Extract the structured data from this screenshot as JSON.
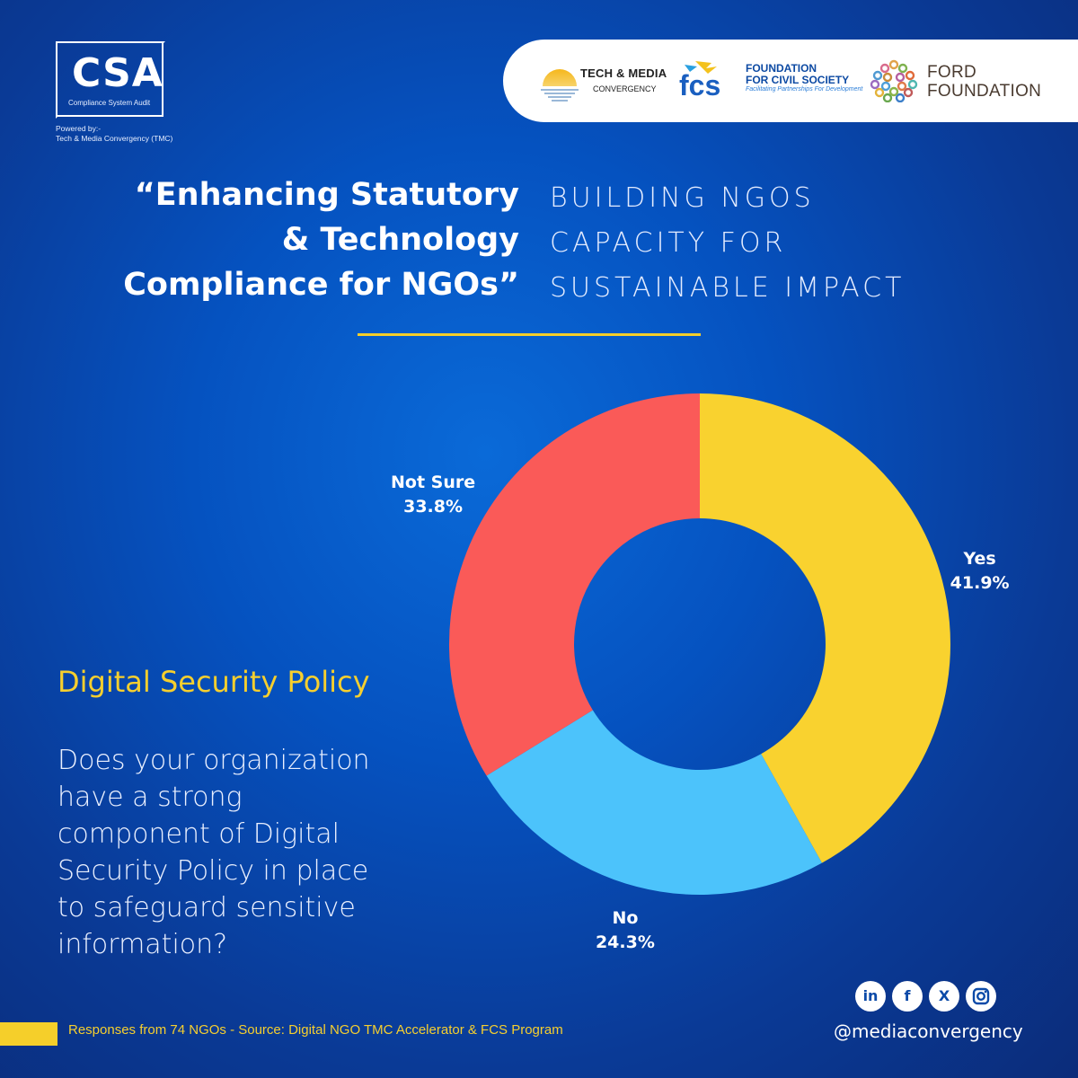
{
  "brand": {
    "logo_letters": "CSA",
    "logo_sub": "Compliance System Audit",
    "powered_1": "Powered by:-",
    "powered_2": "Tech & Media Convergency (TMC)"
  },
  "partners": {
    "tmc_1": "TECH & MEDIA",
    "tmc_2": "CONVERGENCY",
    "fcs_mark": "fcs",
    "fcs_1": "FOUNDATION",
    "fcs_2": "FOR CIVIL SOCIETY",
    "fcs_3": "Facilitating Partnerships For Development",
    "ford_1": "FORD",
    "ford_2": "FOUNDATION"
  },
  "headline": {
    "l1": "“Enhancing Statutory",
    "l2": "& Technology",
    "l3": "Compliance for NGOs”"
  },
  "subhead": {
    "l1": "BUILDING NGOS",
    "l2": "CAPACITY FOR",
    "l3": "SUSTAINABLE IMPACT"
  },
  "colors": {
    "yes": "#f9d22f",
    "no": "#4cc3fb",
    "not_sure": "#fa5a58",
    "accent": "#f5cf2a"
  },
  "chart_data": {
    "type": "pie",
    "donut": true,
    "categories": [
      "Yes",
      "No",
      "Not Sure"
    ],
    "values": [
      41.9,
      24.3,
      33.8
    ],
    "labels": [
      "41.9%",
      "24.3%",
      "33.8%"
    ],
    "colors": [
      "#f9d22f",
      "#4cc3fb",
      "#fa5a58"
    ],
    "title": "",
    "start": "12 o'clock, clockwise"
  },
  "topic": "Digital Security Policy",
  "question": {
    "l1": "Does your organization",
    "l2": "have a strong",
    "l3": "component of Digital",
    "l4": "Security Policy in place",
    "l5": "to safeguard sensitive",
    "l6": "information?"
  },
  "footer": {
    "source": "Responses from 74 NGOs - Source: Digital NGO TMC Accelerator & FCS Program",
    "handle": "@mediaconvergency"
  },
  "social_icons": [
    "linkedin-icon",
    "facebook-icon",
    "x-icon",
    "instagram-icon"
  ]
}
